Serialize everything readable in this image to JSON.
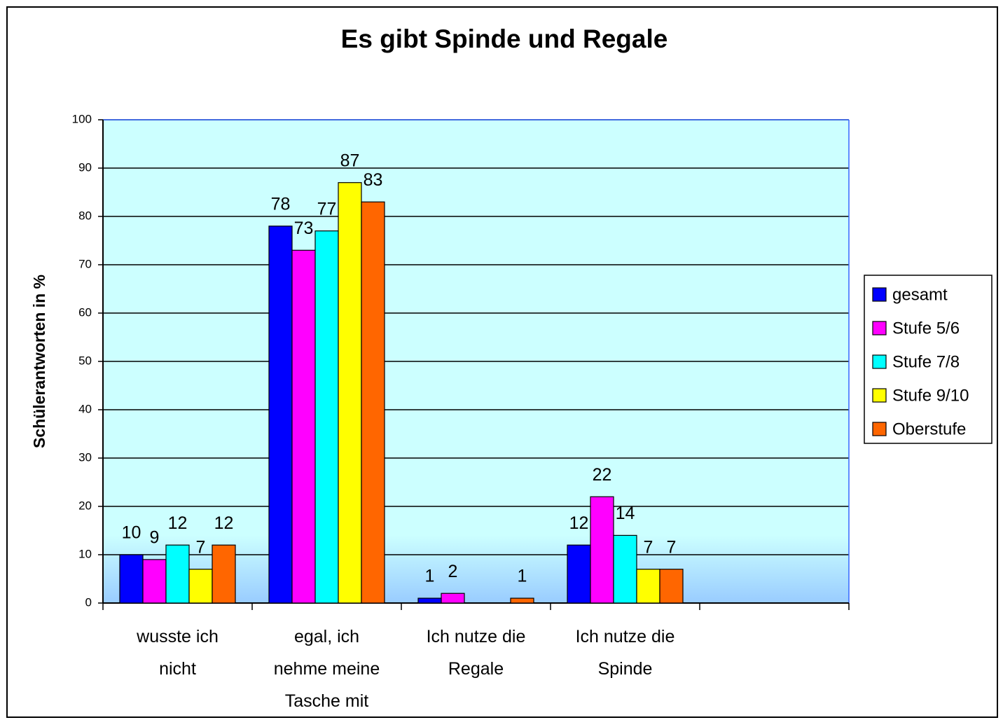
{
  "chart_data": {
    "type": "bar",
    "title": "Es gibt Spinde und Regale",
    "y_label": "Schülerantworten in %",
    "categories": [
      "wusste ich nicht",
      "egal, ich nehme meine Tasche mit",
      "Ich nutze die Regale",
      "Ich nutze die Spinde",
      null
    ],
    "series": [
      {
        "name": "gesamt",
        "color": "#0000ff",
        "values": [
          10,
          78,
          1,
          12,
          null
        ]
      },
      {
        "name": "Stufe 5/6",
        "color": "#ff00ff",
        "values": [
          9,
          73,
          2,
          22,
          null
        ]
      },
      {
        "name": "Stufe 7/8",
        "color": "#00ffff",
        "values": [
          12,
          77,
          null,
          14,
          null
        ]
      },
      {
        "name": "Stufe 9/10",
        "color": "#ffff00",
        "values": [
          7,
          87,
          null,
          7,
          null
        ]
      },
      {
        "name": "Oberstufe",
        "color": "#ff6600",
        "values": [
          12,
          83,
          1,
          7,
          null
        ]
      }
    ],
    "ylim": [
      0,
      100
    ],
    "yticks": [
      0,
      10,
      20,
      30,
      40,
      50,
      60,
      70,
      80,
      90,
      100
    ],
    "grid": true,
    "legend": "right"
  }
}
